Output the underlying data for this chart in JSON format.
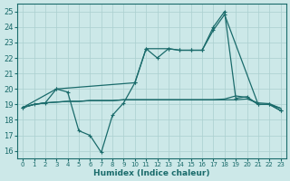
{
  "xlabel": "Humidex (Indice chaleur)",
  "xlim": [
    -0.5,
    23.5
  ],
  "ylim": [
    15.5,
    25.5
  ],
  "xticks": [
    0,
    1,
    2,
    3,
    4,
    5,
    6,
    7,
    8,
    9,
    10,
    11,
    12,
    13,
    14,
    15,
    16,
    17,
    18,
    19,
    20,
    21,
    22,
    23
  ],
  "yticks": [
    16,
    17,
    18,
    19,
    20,
    21,
    22,
    23,
    24,
    25
  ],
  "bg_color": "#cce8e8",
  "line_color": "#1a6b6b",
  "grid_color": "#aacfcf",
  "lines": [
    {
      "x": [
        0,
        1,
        2,
        3,
        4,
        5,
        6,
        7,
        8,
        9,
        10,
        11,
        12,
        13,
        14,
        15,
        16,
        17,
        18,
        19,
        20,
        21,
        22,
        23
      ],
      "y": [
        18.8,
        19.0,
        19.1,
        19.15,
        19.2,
        19.2,
        19.25,
        19.25,
        19.25,
        19.3,
        19.3,
        19.3,
        19.3,
        19.3,
        19.3,
        19.3,
        19.3,
        19.3,
        19.3,
        19.3,
        19.35,
        19.1,
        19.05,
        18.75
      ],
      "marker": false,
      "lw": 0.9
    },
    {
      "x": [
        0,
        1,
        2,
        3,
        4,
        5,
        6,
        7,
        8,
        9,
        10,
        11,
        12,
        13,
        14,
        15,
        16,
        17,
        18,
        19,
        20,
        21,
        22,
        23
      ],
      "y": [
        18.8,
        19.0,
        19.1,
        20.0,
        19.8,
        17.3,
        17.0,
        15.9,
        18.3,
        19.1,
        20.4,
        22.6,
        22.0,
        22.6,
        22.5,
        22.5,
        22.5,
        24.0,
        25.0,
        19.4,
        19.5,
        19.0,
        19.0,
        18.6
      ],
      "marker": true,
      "lw": 0.9
    },
    {
      "x": [
        0,
        3,
        10,
        11,
        13,
        14,
        15,
        16,
        17,
        18,
        21,
        22,
        23
      ],
      "y": [
        18.8,
        20.0,
        20.4,
        22.6,
        22.6,
        22.5,
        22.5,
        22.5,
        23.8,
        24.8,
        19.0,
        19.0,
        18.6
      ],
      "marker": true,
      "lw": 0.9
    },
    {
      "x": [
        0,
        1,
        2,
        3,
        4,
        5,
        6,
        7,
        8,
        9,
        10,
        11,
        12,
        13,
        14,
        15,
        16,
        17,
        18,
        19,
        20,
        21,
        22,
        23
      ],
      "y": [
        18.8,
        19.0,
        19.1,
        19.15,
        19.2,
        19.2,
        19.25,
        19.25,
        19.25,
        19.3,
        19.3,
        19.3,
        19.3,
        19.3,
        19.3,
        19.3,
        19.3,
        19.3,
        19.35,
        19.55,
        19.45,
        19.0,
        19.0,
        18.75
      ],
      "marker": false,
      "lw": 0.9
    }
  ]
}
